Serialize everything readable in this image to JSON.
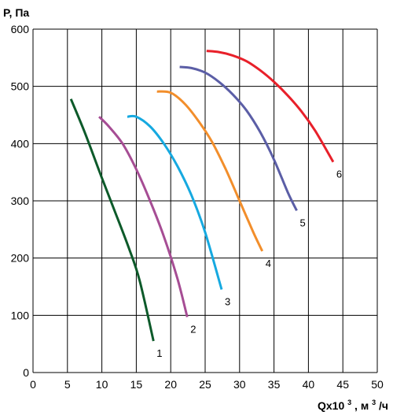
{
  "chart_data": {
    "type": "line",
    "ylabel": "P, Па",
    "xlabel_main": "Qx10",
    "xlabel_exp": "3",
    "xlabel_unit_prefix": ", м",
    "xlabel_unit_exp": "3",
    "xlabel_unit_suffix": "/ч",
    "xlim": [
      0,
      50
    ],
    "ylim": [
      0,
      600
    ],
    "x_ticks": [
      0,
      5,
      10,
      15,
      20,
      25,
      30,
      35,
      40,
      45,
      50
    ],
    "y_ticks": [
      0,
      100,
      200,
      300,
      400,
      500,
      600
    ],
    "grid": true,
    "series": [
      {
        "label": "1",
        "color": "#0d5a2a",
        "points": [
          [
            5.5,
            478
          ],
          [
            7.5,
            420
          ],
          [
            10,
            340
          ],
          [
            12,
            278
          ],
          [
            14,
            215
          ],
          [
            15.5,
            160
          ],
          [
            17.5,
            55
          ]
        ]
      },
      {
        "label": "2",
        "color": "#a64d94",
        "points": [
          [
            9.6,
            447
          ],
          [
            11,
            430
          ],
          [
            13,
            400
          ],
          [
            15,
            355
          ],
          [
            17,
            300
          ],
          [
            19,
            238
          ],
          [
            21,
            163
          ],
          [
            22.4,
            97
          ]
        ]
      },
      {
        "label": "3",
        "color": "#16a9e0",
        "points": [
          [
            13.7,
            447
          ],
          [
            15,
            447
          ],
          [
            17,
            430
          ],
          [
            19,
            400
          ],
          [
            21,
            360
          ],
          [
            23,
            310
          ],
          [
            25,
            245
          ],
          [
            27.4,
            145
          ]
        ]
      },
      {
        "label": "4",
        "color": "#f28e2b",
        "points": [
          [
            18,
            491
          ],
          [
            20,
            489
          ],
          [
            22,
            470
          ],
          [
            24,
            440
          ],
          [
            26,
            403
          ],
          [
            28,
            355
          ],
          [
            30,
            300
          ],
          [
            32,
            245
          ],
          [
            33.3,
            212
          ]
        ]
      },
      {
        "label": "5",
        "color": "#5b5ea6",
        "points": [
          [
            21.3,
            534
          ],
          [
            23,
            532
          ],
          [
            25,
            524
          ],
          [
            27,
            508
          ],
          [
            29,
            486
          ],
          [
            31,
            458
          ],
          [
            33,
            420
          ],
          [
            35,
            372
          ],
          [
            37,
            315
          ],
          [
            38.3,
            283
          ]
        ]
      },
      {
        "label": "6",
        "color": "#e8202a",
        "points": [
          [
            25.2,
            562
          ],
          [
            27,
            560
          ],
          [
            29,
            554
          ],
          [
            31,
            544
          ],
          [
            33,
            528
          ],
          [
            35,
            508
          ],
          [
            37,
            484
          ],
          [
            39,
            456
          ],
          [
            41,
            422
          ],
          [
            43.6,
            368
          ]
        ]
      }
    ]
  }
}
